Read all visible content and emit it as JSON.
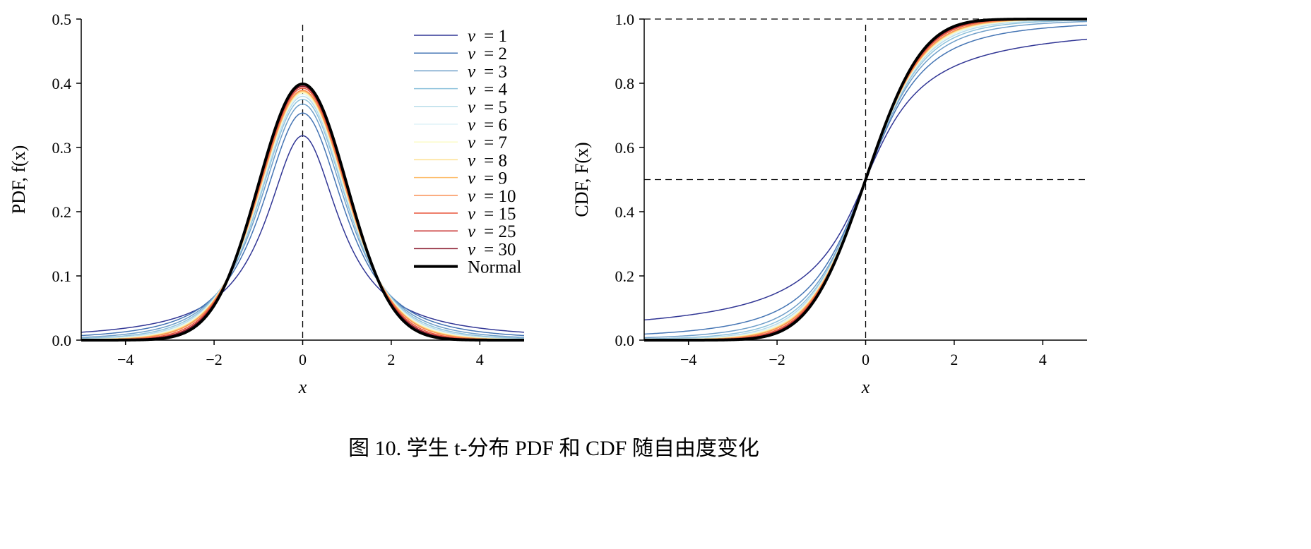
{
  "caption": "图 10. 学生 t-分布 PDF 和 CDF 随自由度变化",
  "colors": {
    "nu_1": "#313695",
    "nu_2": "#4575b4",
    "nu_3": "#6f9fc9",
    "nu_4": "#8fc3dc",
    "nu_5": "#b8dcea",
    "nu_6": "#e0f3f8",
    "nu_7": "#fbfbc4",
    "nu_8": "#fee090",
    "nu_9": "#fdbd6b",
    "nu_10": "#f98e52",
    "nu_15": "#e8553a",
    "nu_25": "#c72f2e",
    "nu_30": "#8a1a2e",
    "normal": "#000000"
  },
  "legend": [
    {
      "key": "nu_1",
      "sym": "ν",
      "val": "= 1"
    },
    {
      "key": "nu_2",
      "sym": "ν",
      "val": "= 2"
    },
    {
      "key": "nu_3",
      "sym": "ν",
      "val": "= 3"
    },
    {
      "key": "nu_4",
      "sym": "ν",
      "val": "= 4"
    },
    {
      "key": "nu_5",
      "sym": "ν",
      "val": "= 5"
    },
    {
      "key": "nu_6",
      "sym": "ν",
      "val": "= 6"
    },
    {
      "key": "nu_7",
      "sym": "ν",
      "val": "= 7"
    },
    {
      "key": "nu_8",
      "sym": "ν",
      "val": "= 8"
    },
    {
      "key": "nu_9",
      "sym": "ν",
      "val": "= 9"
    },
    {
      "key": "nu_10",
      "sym": "ν",
      "val": "= 10"
    },
    {
      "key": "nu_15",
      "sym": "ν",
      "val": "= 15"
    },
    {
      "key": "nu_25",
      "sym": "ν",
      "val": "= 25"
    },
    {
      "key": "nu_30",
      "sym": "ν",
      "val": "= 30"
    },
    {
      "key": "normal",
      "sym": "",
      "val": "Normal"
    }
  ],
  "chart_data": [
    {
      "type": "line",
      "title": "",
      "xlabel": "x",
      "ylabel": "PDF, f(x)",
      "xlim": [
        -5,
        5
      ],
      "ylim": [
        0,
        0.5
      ],
      "xticks": [
        "−4",
        "−2",
        "0",
        "2",
        "4"
      ],
      "yticks": [
        "0.0",
        "0.1",
        "0.2",
        "0.3",
        "0.4",
        "0.5"
      ],
      "grid": false,
      "legend_position": "top-right",
      "reference_lines": [
        {
          "orientation": "vertical",
          "x": 0,
          "style": "dashed"
        }
      ],
      "series": [
        {
          "name": "ν = 1",
          "peak": 0.318
        },
        {
          "name": "ν = 2",
          "peak": 0.354
        },
        {
          "name": "ν = 3",
          "peak": 0.368
        },
        {
          "name": "ν = 4",
          "peak": 0.375
        },
        {
          "name": "ν = 5",
          "peak": 0.38
        },
        {
          "name": "ν = 6",
          "peak": 0.383
        },
        {
          "name": "ν = 7",
          "peak": 0.385
        },
        {
          "name": "ν = 8",
          "peak": 0.387
        },
        {
          "name": "ν = 9",
          "peak": 0.388
        },
        {
          "name": "ν = 10",
          "peak": 0.389
        },
        {
          "name": "ν = 15",
          "peak": 0.392
        },
        {
          "name": "ν = 25",
          "peak": 0.394
        },
        {
          "name": "ν = 30",
          "peak": 0.395
        },
        {
          "name": "Normal",
          "peak": 0.399
        }
      ]
    },
    {
      "type": "line",
      "title": "",
      "xlabel": "x",
      "ylabel": "CDF, F(x)",
      "xlim": [
        -5,
        5
      ],
      "ylim": [
        0,
        1.0
      ],
      "xticks": [
        "−4",
        "−2",
        "0",
        "2",
        "4"
      ],
      "yticks": [
        "0.0",
        "0.2",
        "0.4",
        "0.6",
        "0.8",
        "1.0"
      ],
      "grid": false,
      "reference_lines": [
        {
          "orientation": "vertical",
          "x": 0,
          "style": "dashed"
        },
        {
          "orientation": "horizontal",
          "y": 0.5,
          "style": "dashed"
        },
        {
          "orientation": "horizontal",
          "y": 1.0,
          "style": "dashed"
        }
      ],
      "series": [
        {
          "name": "ν = 1",
          "F_at_minus5": 0.063,
          "F_at_5": 0.937
        },
        {
          "name": "ν = 2",
          "F_at_minus5": 0.019,
          "F_at_5": 0.981
        },
        {
          "name": "ν = 30",
          "F_at_minus5": 0.0,
          "F_at_5": 1.0
        },
        {
          "name": "Normal",
          "F_at_minus5": 0.0,
          "F_at_5": 1.0
        }
      ]
    }
  ]
}
